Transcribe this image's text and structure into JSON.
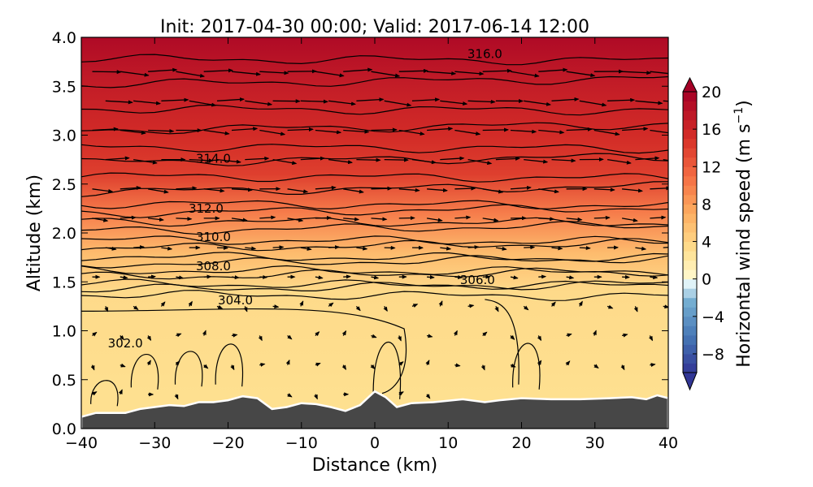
{
  "chart_data": {
    "type": "heatmap",
    "title": "Init: 2017-04-30 00:00; Valid: 2017-06-14 12:00",
    "xlabel": "Distance (km)",
    "ylabel": "Altitude (km)",
    "xlim": [
      -40,
      40
    ],
    "ylim": [
      0.0,
      4.0
    ],
    "x_ticks": [
      "−40",
      "−30",
      "−20",
      "−10",
      "0",
      "10",
      "20",
      "30",
      "40"
    ],
    "y_ticks": [
      "0.0",
      "0.5",
      "1.0",
      "1.5",
      "2.0",
      "2.5",
      "3.0",
      "3.5",
      "4.0"
    ],
    "colorbar": {
      "label": "Horizontal wind speed (m s",
      "label_exponent": "−1",
      "label_close": ")",
      "range": [
        -10,
        20
      ],
      "levels_step": 1,
      "ticks": [
        "20",
        "16",
        "12",
        "8",
        "4",
        "0",
        "−4",
        "−8"
      ],
      "extend": "both",
      "colormap": "RdYlBu_r"
    },
    "wind_speed_profile": [
      {
        "altitude": 0.3,
        "speed": 3
      },
      {
        "altitude": 1.4,
        "speed": 3.5
      },
      {
        "altitude": 1.8,
        "speed": 6
      },
      {
        "altitude": 2.2,
        "speed": 10
      },
      {
        "altitude": 2.6,
        "speed": 14
      },
      {
        "altitude": 3.0,
        "speed": 15.5
      },
      {
        "altitude": 3.5,
        "speed": 17
      },
      {
        "altitude": 4.0,
        "speed": 19
      }
    ],
    "theta_contours": [
      {
        "label": "302.0",
        "label_x": -34,
        "label_y": 0.87
      },
      {
        "label": "304.0",
        "label_x": -19,
        "label_y": 1.31
      },
      {
        "label": "306.0",
        "label_x": 14,
        "label_y": 1.52
      },
      {
        "label": "308.0",
        "label_x": -22,
        "label_y": 1.66
      },
      {
        "label": "310.0",
        "label_x": -22,
        "label_y": 1.96
      },
      {
        "label": "312.0",
        "label_x": -23,
        "label_y": 2.25
      },
      {
        "label": "314.0",
        "label_x": -22,
        "label_y": 2.76
      },
      {
        "label": "316.0",
        "label_x": 15,
        "label_y": 3.83
      }
    ],
    "terrain": [
      {
        "x": -40,
        "alt": 0.12
      },
      {
        "x": -38,
        "alt": 0.16
      },
      {
        "x": -36,
        "alt": 0.16
      },
      {
        "x": -34,
        "alt": 0.16
      },
      {
        "x": -32,
        "alt": 0.2
      },
      {
        "x": -30,
        "alt": 0.22
      },
      {
        "x": -28,
        "alt": 0.24
      },
      {
        "x": -26,
        "alt": 0.23
      },
      {
        "x": -24,
        "alt": 0.27
      },
      {
        "x": -22,
        "alt": 0.27
      },
      {
        "x": -20,
        "alt": 0.29
      },
      {
        "x": -18,
        "alt": 0.33
      },
      {
        "x": -16,
        "alt": 0.31
      },
      {
        "x": -14,
        "alt": 0.2
      },
      {
        "x": -12,
        "alt": 0.22
      },
      {
        "x": -10,
        "alt": 0.26
      },
      {
        "x": -8,
        "alt": 0.25
      },
      {
        "x": -6,
        "alt": 0.22
      },
      {
        "x": -4,
        "alt": 0.18
      },
      {
        "x": -2,
        "alt": 0.24
      },
      {
        "x": 0,
        "alt": 0.38
      },
      {
        "x": 1.5,
        "alt": 0.32
      },
      {
        "x": 3,
        "alt": 0.22
      },
      {
        "x": 5,
        "alt": 0.26
      },
      {
        "x": 8,
        "alt": 0.27
      },
      {
        "x": 12,
        "alt": 0.3
      },
      {
        "x": 15,
        "alt": 0.27
      },
      {
        "x": 17,
        "alt": 0.29
      },
      {
        "x": 20,
        "alt": 0.31
      },
      {
        "x": 24,
        "alt": 0.3
      },
      {
        "x": 28,
        "alt": 0.3
      },
      {
        "x": 32,
        "alt": 0.31
      },
      {
        "x": 35,
        "alt": 0.32
      },
      {
        "x": 37,
        "alt": 0.3
      },
      {
        "x": 38.5,
        "alt": 0.34
      },
      {
        "x": 40,
        "alt": 0.31
      }
    ],
    "grid": false,
    "overlays": [
      "wind vectors",
      "potential temperature contours (K)"
    ]
  }
}
